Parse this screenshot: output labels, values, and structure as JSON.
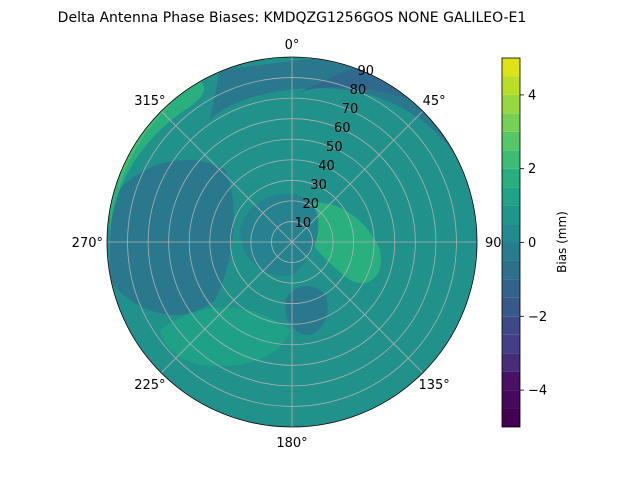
{
  "chart_data": {
    "type": "polar-contour",
    "title": "Delta Antenna Phase Biases: KMDQZG1256GOS   NONE GALILEO-E1",
    "azimuth_labels": [
      {
        "deg": 0,
        "label": "0°"
      },
      {
        "deg": 45,
        "label": "45°"
      },
      {
        "deg": 90,
        "label": "90°"
      },
      {
        "deg": 135,
        "label": "135°"
      },
      {
        "deg": 180,
        "label": "180°"
      },
      {
        "deg": 225,
        "label": "225°"
      },
      {
        "deg": 270,
        "label": "270°"
      },
      {
        "deg": 315,
        "label": "315°"
      }
    ],
    "radial_labels": [
      "10",
      "20",
      "30",
      "40",
      "50",
      "60",
      "70",
      "80",
      "90"
    ],
    "radial_values": [
      10,
      20,
      30,
      40,
      50,
      60,
      70,
      80,
      90
    ],
    "radial_range": [
      0,
      90
    ],
    "grid": true,
    "colorbar": {
      "label": "Bias (mm)",
      "range": [
        -5,
        5
      ],
      "ticks": [
        -4,
        -2,
        0,
        2,
        4
      ],
      "tick_labels": [
        "−4",
        "−2",
        "0",
        "2",
        "4"
      ],
      "levels": [
        -5,
        -4.5,
        -4,
        -3.5,
        -3,
        -2.5,
        -2,
        -1.5,
        -1,
        -0.5,
        0,
        0.5,
        1,
        1.5,
        2,
        2.5,
        3,
        3.5,
        4,
        4.5,
        5
      ],
      "band_colors": [
        "#440154",
        "#472c7a",
        "#3e4c8a",
        "#38588c",
        "#31688e",
        "#2a788e",
        "#26828e",
        "#21918c",
        "#1fa188",
        "#2ab07f",
        "#44bf70",
        "#6ece58",
        "#9fda3a",
        "#c5e021",
        "#e0e31b",
        "#fde725",
        "#fde725",
        "#fde725",
        "#fde725",
        "#fde725"
      ]
    },
    "regions": [
      {
        "name": "background",
        "value": 0.75
      },
      {
        "name": "ne-edge-low",
        "value": -1.75
      },
      {
        "name": "ne-edge-lowest",
        "value": -3.25
      },
      {
        "name": "nw-edge-high",
        "value": 2.25
      },
      {
        "name": "east-blob-high",
        "value": 1.25
      },
      {
        "name": "south-blob-low",
        "value": -0.75
      },
      {
        "name": "center-ring-low",
        "value": -0.25
      }
    ]
  }
}
